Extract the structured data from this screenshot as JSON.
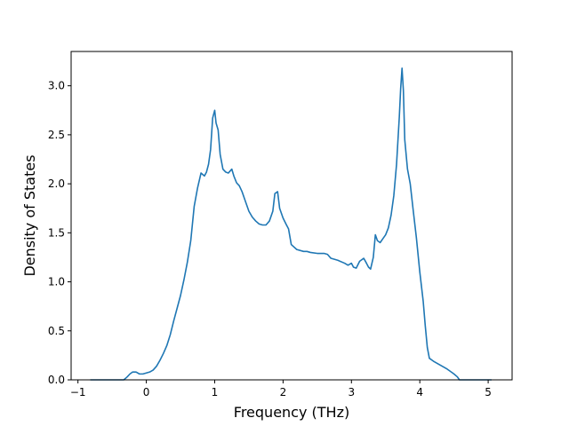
{
  "chart_data": {
    "type": "line",
    "title": "",
    "xlabel": "Frequency (THz)",
    "ylabel": "Density of States",
    "xlim": [
      -1.1,
      5.35
    ],
    "ylim": [
      0.0,
      3.35
    ],
    "xticks": [
      -1,
      0,
      1,
      2,
      3,
      4,
      5
    ],
    "xtick_labels": [
      "−1",
      "0",
      "1",
      "2",
      "3",
      "4",
      "5"
    ],
    "yticks": [
      0.0,
      0.5,
      1.0,
      1.5,
      2.0,
      2.5,
      3.0
    ],
    "ytick_labels": [
      "0.0",
      "0.5",
      "1.0",
      "1.5",
      "2.0",
      "2.5",
      "3.0"
    ],
    "grid": false,
    "legend": false,
    "color": "#1f77b4",
    "series": [
      {
        "x": [
          -0.82,
          -0.5,
          -0.33,
          -0.28,
          -0.24,
          -0.2,
          -0.15,
          -0.1,
          -0.05,
          0.0,
          0.05,
          0.1,
          0.15,
          0.2,
          0.25,
          0.3,
          0.35,
          0.4,
          0.45,
          0.5,
          0.55,
          0.6,
          0.65,
          0.7,
          0.75,
          0.8,
          0.85,
          0.88,
          0.91,
          0.94,
          0.97,
          1.0,
          1.02,
          1.05,
          1.08,
          1.12,
          1.16,
          1.2,
          1.25,
          1.28,
          1.32,
          1.36,
          1.4,
          1.45,
          1.5,
          1.55,
          1.6,
          1.65,
          1.7,
          1.75,
          1.8,
          1.85,
          1.88,
          1.92,
          1.95,
          2.0,
          2.05,
          2.08,
          2.12,
          2.2,
          2.3,
          2.35,
          2.4,
          2.5,
          2.6,
          2.65,
          2.7,
          2.8,
          2.9,
          2.95,
          3.0,
          3.03,
          3.07,
          3.12,
          3.18,
          3.22,
          3.25,
          3.28,
          3.32,
          3.35,
          3.38,
          3.42,
          3.46,
          3.5,
          3.54,
          3.58,
          3.62,
          3.66,
          3.7,
          3.72,
          3.74,
          3.76,
          3.78,
          3.82,
          3.86,
          3.9,
          3.95,
          4.0,
          4.05,
          4.08,
          4.11,
          4.14,
          4.2,
          4.3,
          4.4,
          4.5,
          4.55,
          4.58,
          4.62,
          5.05
        ],
        "y": [
          0.0,
          0.0,
          0.0,
          0.03,
          0.06,
          0.08,
          0.08,
          0.06,
          0.06,
          0.07,
          0.08,
          0.1,
          0.14,
          0.2,
          0.27,
          0.35,
          0.46,
          0.6,
          0.73,
          0.86,
          1.02,
          1.2,
          1.42,
          1.77,
          1.96,
          2.11,
          2.08,
          2.12,
          2.2,
          2.35,
          2.67,
          2.75,
          2.62,
          2.55,
          2.3,
          2.15,
          2.12,
          2.11,
          2.15,
          2.08,
          2.01,
          1.98,
          1.92,
          1.82,
          1.72,
          1.66,
          1.62,
          1.59,
          1.58,
          1.58,
          1.62,
          1.72,
          1.9,
          1.92,
          1.75,
          1.65,
          1.58,
          1.54,
          1.38,
          1.33,
          1.31,
          1.31,
          1.3,
          1.29,
          1.29,
          1.28,
          1.24,
          1.22,
          1.19,
          1.17,
          1.19,
          1.15,
          1.14,
          1.21,
          1.24,
          1.19,
          1.15,
          1.13,
          1.25,
          1.48,
          1.42,
          1.4,
          1.44,
          1.48,
          1.55,
          1.68,
          1.88,
          2.2,
          2.68,
          2.97,
          3.18,
          2.95,
          2.45,
          2.15,
          2.0,
          1.75,
          1.45,
          1.1,
          0.8,
          0.55,
          0.33,
          0.22,
          0.19,
          0.15,
          0.11,
          0.06,
          0.03,
          0.0,
          0.0,
          0.0
        ]
      }
    ]
  }
}
